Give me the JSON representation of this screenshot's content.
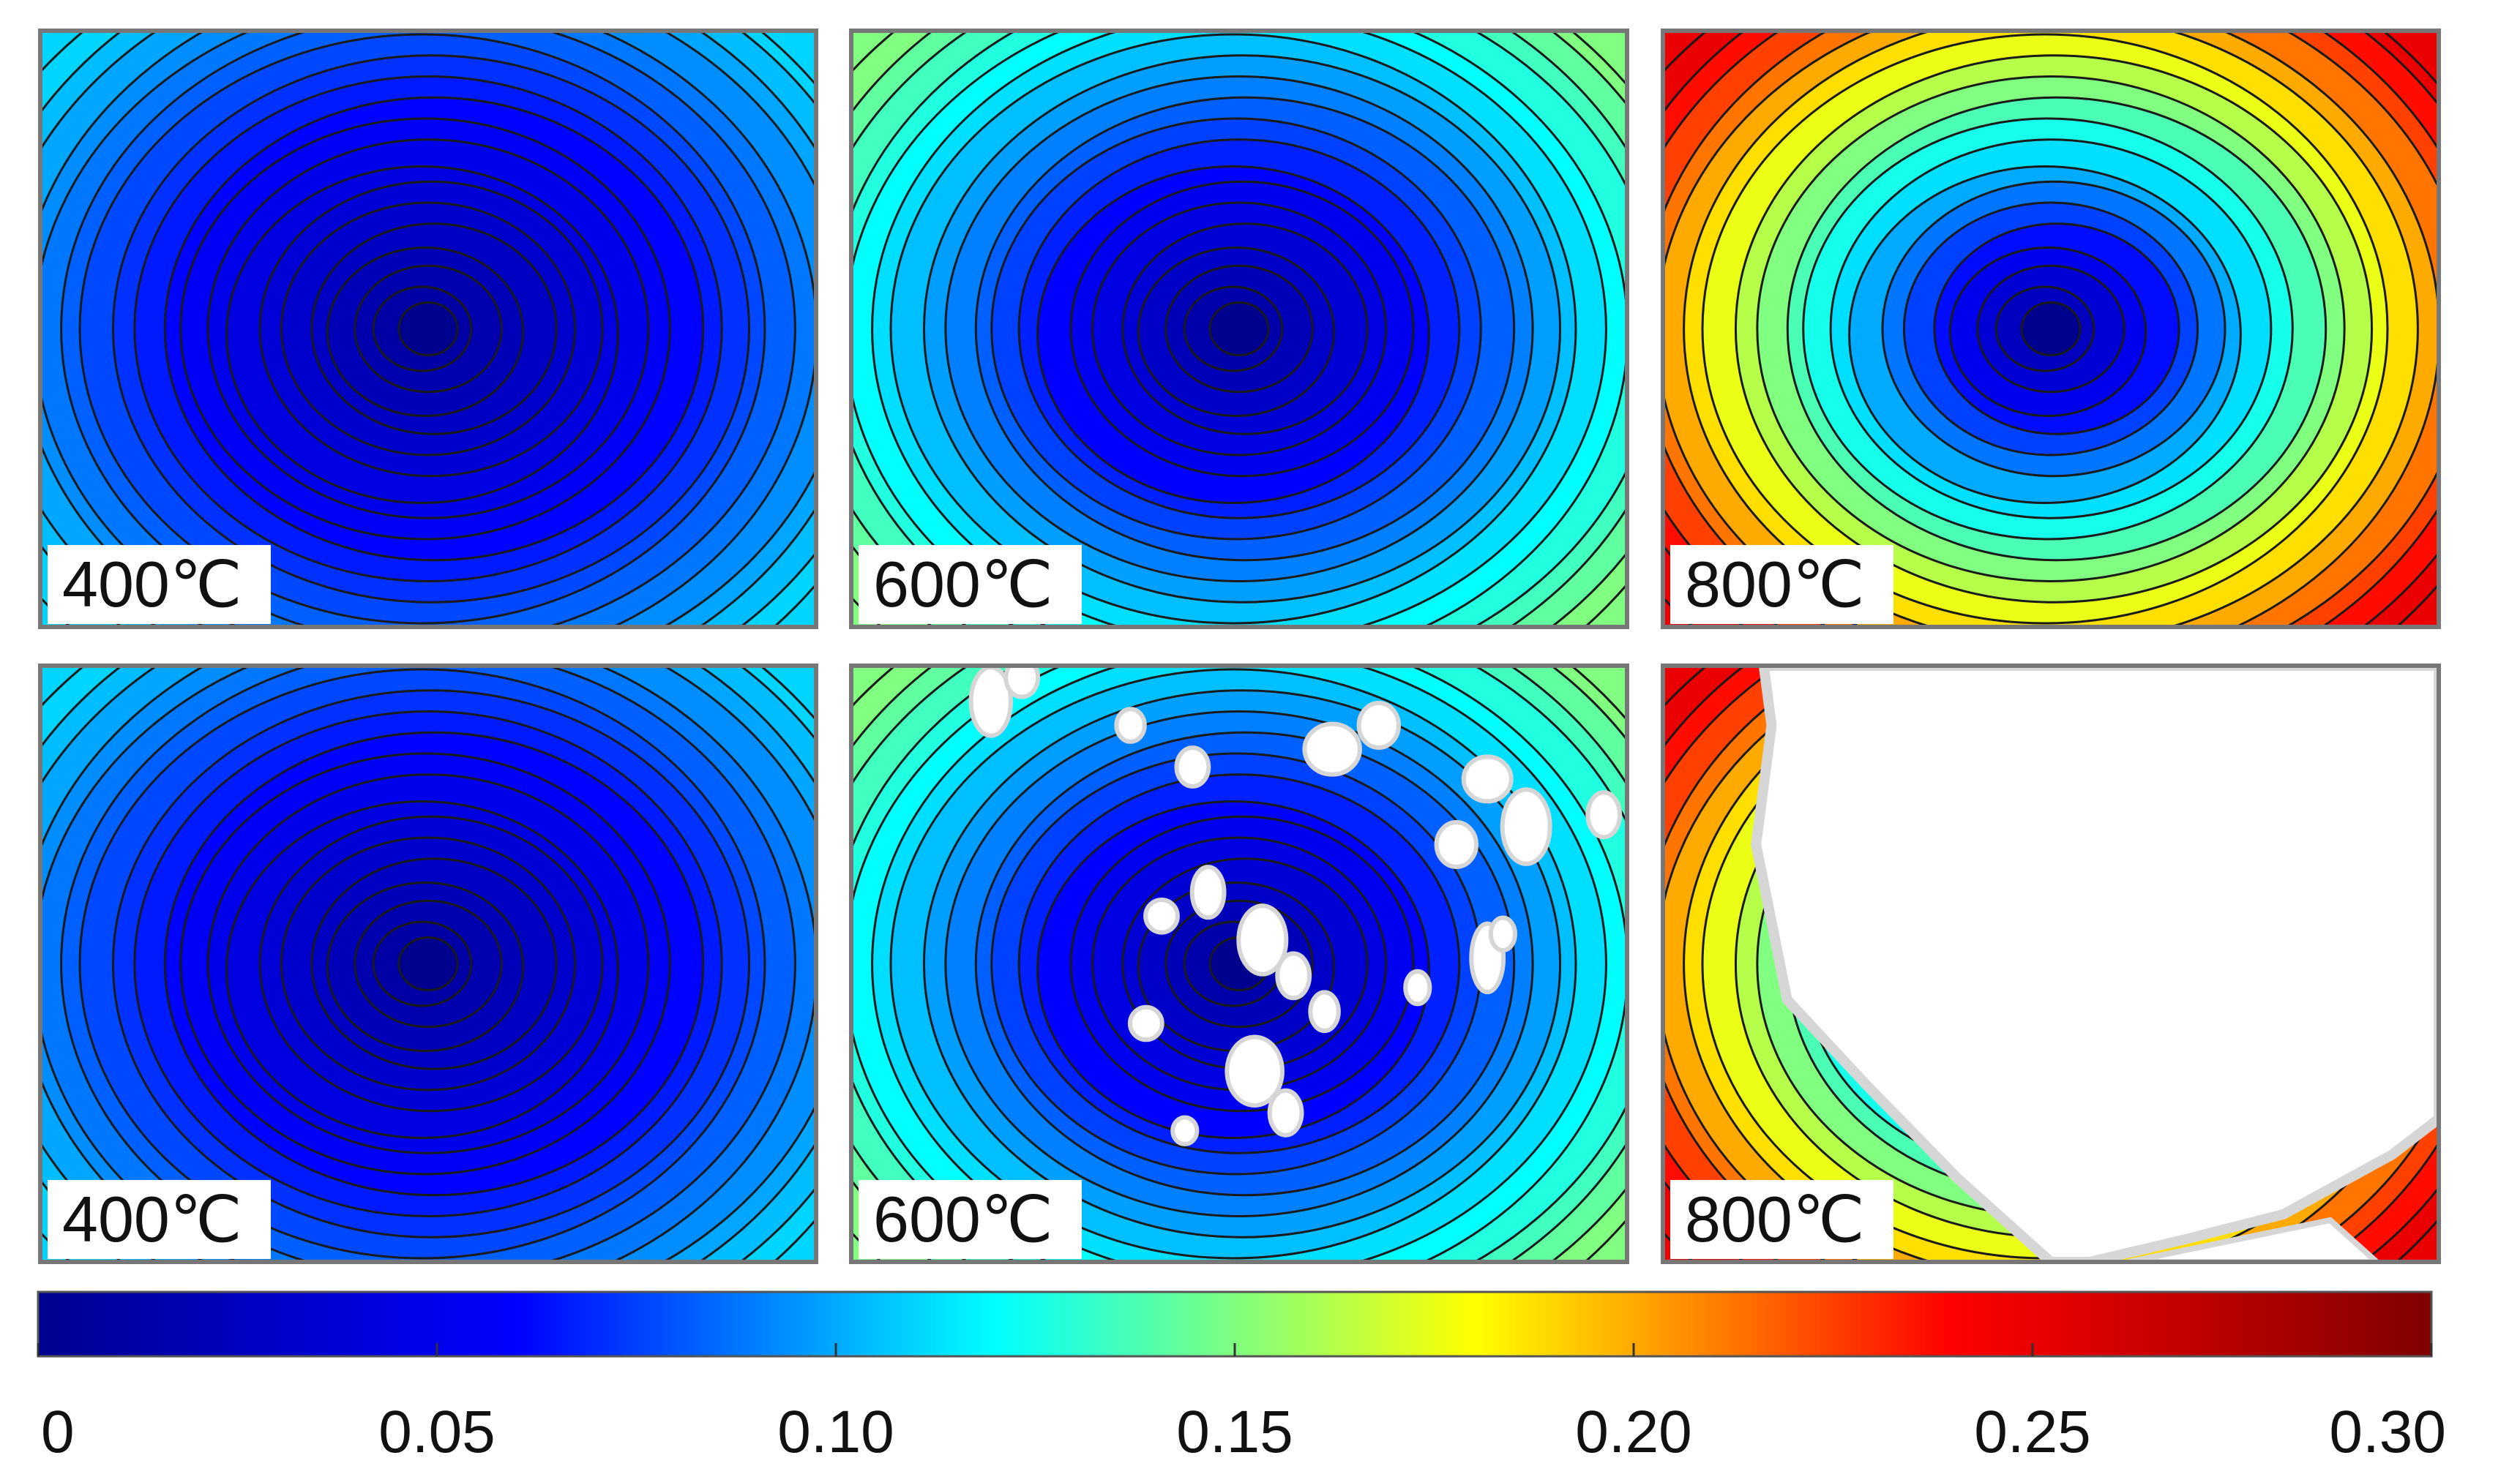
{
  "chart_data": {
    "type": "heatmap",
    "layout": "2 rows x 3 columns of contour maps with shared colorbar",
    "title": "",
    "xlabel": "",
    "ylabel": "",
    "colormap": "jet",
    "contour_lines": true,
    "colorbar": {
      "orientation": "horizontal",
      "placement": "bottom",
      "range": [
        0,
        0.3
      ],
      "ticks": [
        "0",
        "0.05",
        "0.10",
        "0.15",
        "0.20",
        "0.25",
        "0.30"
      ],
      "tick_values": [
        0,
        0.05,
        0.1,
        0.15,
        0.2,
        0.25,
        0.3
      ]
    },
    "panels": [
      {
        "row": 1,
        "col": 1,
        "label": "400℃",
        "center_value": 0.0,
        "corner_value": 0.11,
        "missing_data": "none"
      },
      {
        "row": 1,
        "col": 2,
        "label": "600℃",
        "center_value": 0.0,
        "corner_value": 0.15,
        "missing_data": "none"
      },
      {
        "row": 1,
        "col": 3,
        "label": "800℃",
        "center_value": 0.0,
        "corner_value": 0.25,
        "missing_data": "none"
      },
      {
        "row": 2,
        "col": 1,
        "label": "400℃",
        "center_value": 0.0,
        "corner_value": 0.11,
        "missing_data": "none"
      },
      {
        "row": 2,
        "col": 2,
        "label": "600℃",
        "center_value": 0.0,
        "corner_value": 0.15,
        "missing_data": "scattered patches"
      },
      {
        "row": 2,
        "col": 3,
        "label": "800℃",
        "center_value": 0.0,
        "corner_value": 0.25,
        "missing_data": "most of field"
      }
    ]
  },
  "colors": {
    "jet_stops": [
      "#00008f",
      "#0000ff",
      "#00ffff",
      "#ffff00",
      "#ff0000",
      "#800000"
    ],
    "panel_border": "#777777",
    "missing_data": "#ffffff",
    "missing_speckle": "#d6d6d6",
    "contour_line": "#1a1a1a",
    "label_box": "#ffffff"
  }
}
